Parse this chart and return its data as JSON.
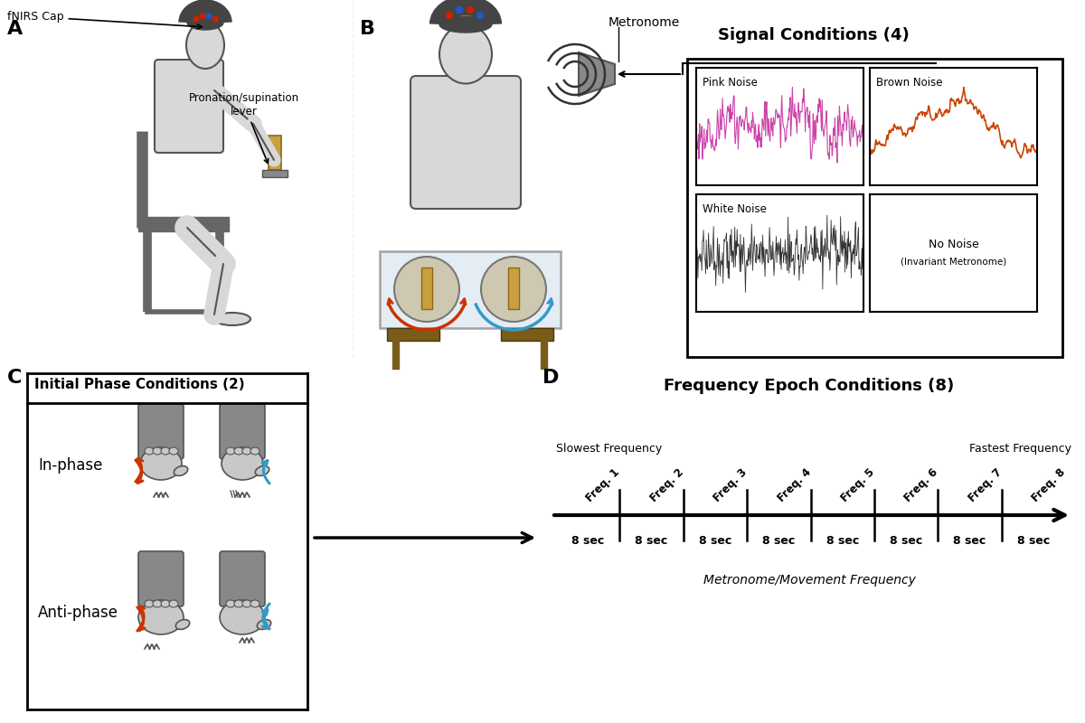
{
  "panel_A_label": "A",
  "panel_B_label": "B",
  "panel_C_label": "C",
  "panel_D_label": "D",
  "fnirs_cap_text": "fNIRS Cap",
  "pronation_text": "Pronation/supination\nlever",
  "metronome_text": "Metronome",
  "signal_conditions_title": "Signal Conditions (4)",
  "pink_noise_label": "Pink Noise",
  "brown_noise_label": "Brown Noise",
  "white_noise_label": "White Noise",
  "no_noise_label": "No Noise\n(Invariant Metronome)",
  "initial_phase_title": "Initial Phase Conditions (2)",
  "inphase_label": "In-phase",
  "antiphase_label": "Anti-phase",
  "freq_epoch_title": "Frequency Epoch Conditions (8)",
  "slowest_freq_text": "Slowest Frequency",
  "fastest_freq_text": "Fastest Frequency",
  "metronome_movement_text": "Metronome/Movement Frequency",
  "freq_labels": [
    "Freq. 1",
    "Freq. 2",
    "Freq. 3",
    "Freq. 4",
    "Freq. 5",
    "Freq. 6",
    "Freq. 7",
    "Freq. 8"
  ],
  "sec_labels": [
    "8 sec",
    "8 sec",
    "8 sec",
    "8 sec",
    "8 sec",
    "8 sec",
    "8 sec",
    "8 sec"
  ],
  "background_color": "#ffffff",
  "body_color": "#d8d8d8",
  "body_outline": "#555555",
  "chair_color": "#666666",
  "lever_color": "#c8a040",
  "cap_color": "#444444",
  "red_dot": "#cc2200",
  "blue_dot": "#2255cc",
  "red_arrow": "#cc3300",
  "blue_arrow": "#3399cc",
  "pink_noise_color": "#cc44aa",
  "brown_noise_color": "#cc4400",
  "white_noise_color": "#333333",
  "fist_color": "#c8c8c8",
  "fist_outline": "#555555",
  "sleeve_color": "#888888"
}
